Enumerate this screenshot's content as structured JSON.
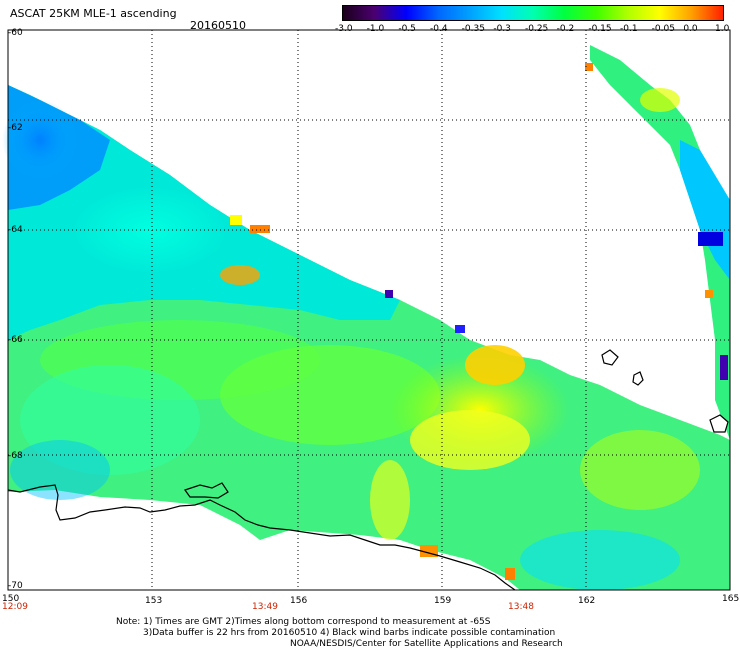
{
  "header": {
    "title": "ASCAT 25KM MLE-1 ascending",
    "date": "20160510"
  },
  "colorbar": {
    "labels": [
      "-3.0",
      "-1.0",
      "-0.5",
      "-0.4",
      "-0.35",
      "-0.3",
      "-0.25",
      "-0.2",
      "-0.15",
      "-0.1",
      "-0.05",
      "0.0",
      "1.0"
    ],
    "colors": [
      "#1a001a",
      "#4b0070",
      "#0000ff",
      "#0066ff",
      "#00a0ff",
      "#00e0ff",
      "#00ffb0",
      "#00ff40",
      "#40ff00",
      "#b0ff00",
      "#ffff00",
      "#ffa000",
      "#ff2000"
    ]
  },
  "axes": {
    "lat_labels": [
      "-60",
      "-62",
      "-64",
      "-66",
      "-68",
      "-70"
    ],
    "lon_labels": [
      "150",
      "153",
      "156",
      "159",
      "162",
      "165"
    ],
    "time_labels": [
      "12:09",
      "13:49",
      "13:48"
    ]
  },
  "footer": {
    "line1": "Note: 1) Times are GMT 2)Times along bottom correspond to measurement at -65S",
    "line2": "3)Data buffer is 22 hrs from 20160510 4) Black wind barbs indicate possible contamination",
    "line3": "NOAA/NESDIS/Center for Satellite Applications and Research"
  }
}
